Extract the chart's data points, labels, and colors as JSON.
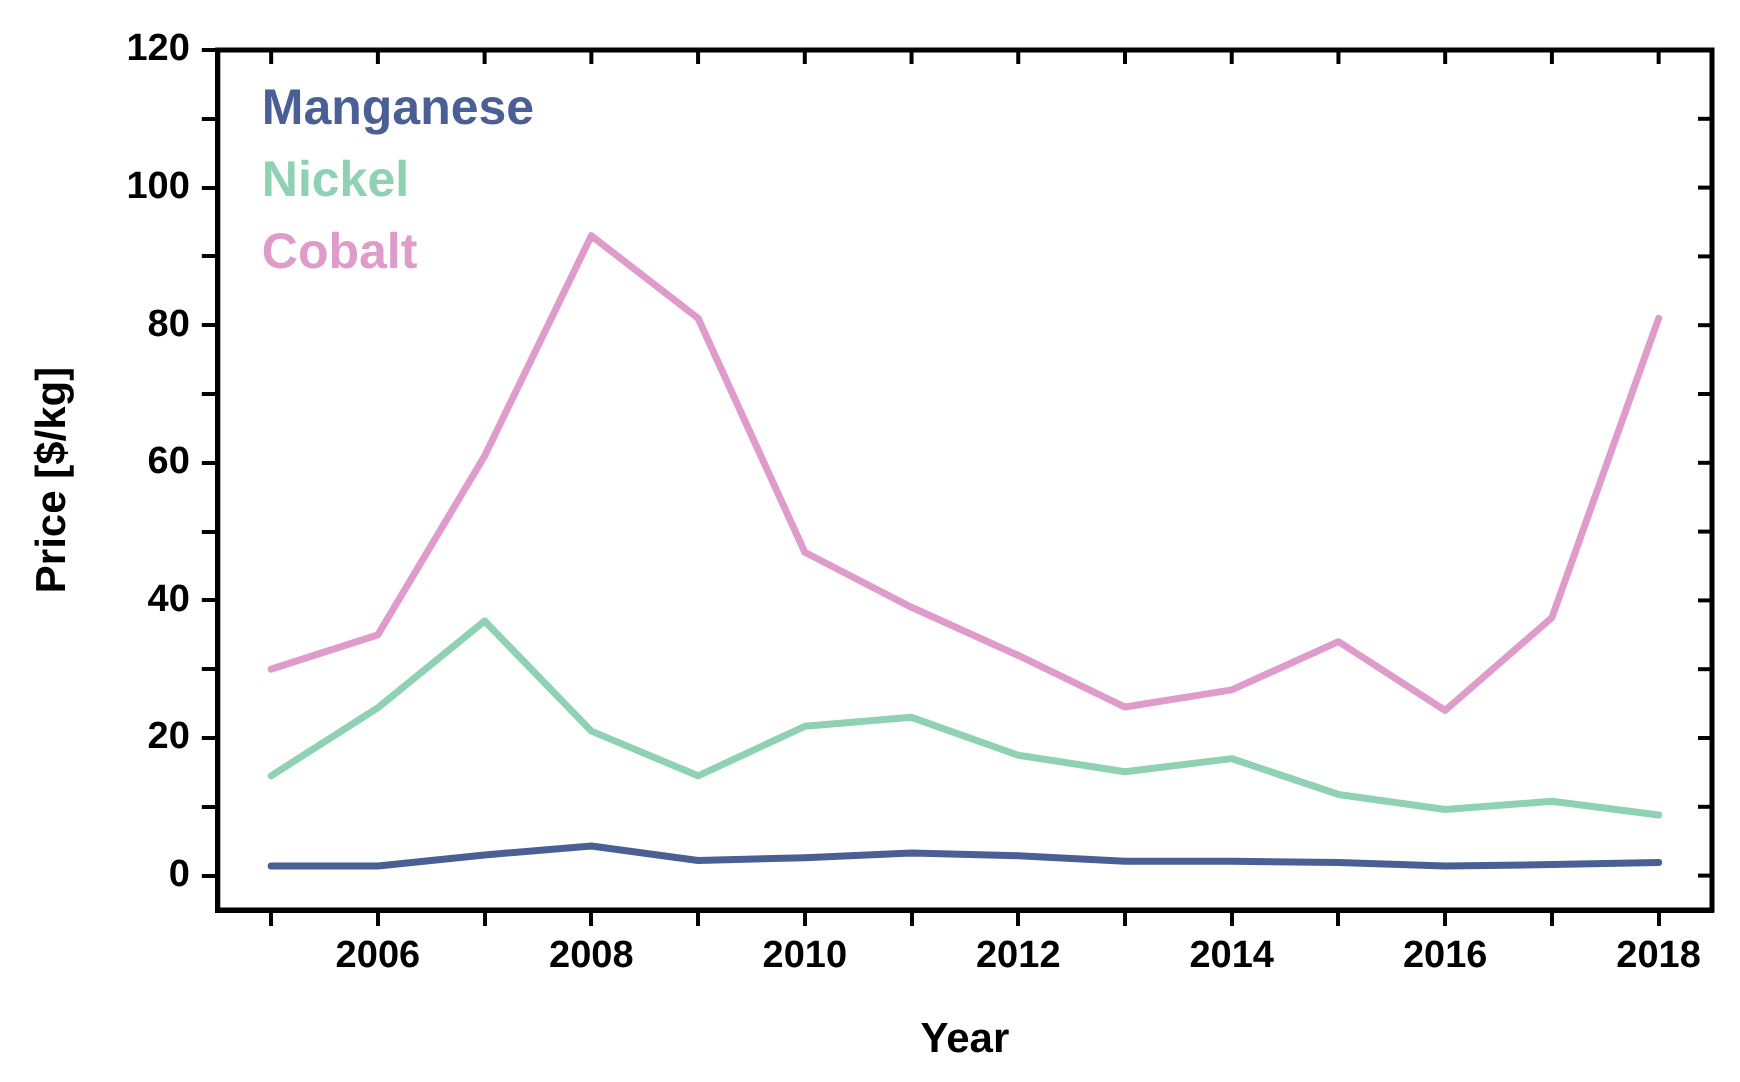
{
  "chart_data": {
    "type": "line",
    "xlabel": "Year",
    "ylabel": "Price [$/kg]",
    "x": [
      2005,
      2006,
      2007,
      2008,
      2009,
      2010,
      2011,
      2012,
      2013,
      2014,
      2015,
      2016,
      2017,
      2018
    ],
    "series": [
      {
        "name": "Manganese",
        "color": "#4a5f94",
        "values": [
          1.4,
          1.4,
          3,
          4.3,
          2.2,
          2.6,
          3.3,
          2.9,
          2.1,
          2.1,
          1.9,
          1.4,
          1.6,
          1.9
        ]
      },
      {
        "name": "Nickel",
        "color": "#8fd1b3",
        "values": [
          14.5,
          24.4,
          37,
          21,
          14.5,
          21.7,
          23,
          17.5,
          15.1,
          17,
          11.8,
          9.6,
          10.8,
          8.8
        ]
      },
      {
        "name": "Cobalt",
        "color": "#df9ccb",
        "values": [
          30,
          35,
          61,
          93,
          81,
          47,
          39,
          32,
          24.5,
          27,
          34,
          24,
          37.5,
          81
        ]
      }
    ],
    "xlim": [
      2004.5,
      2018.5
    ],
    "ylim": [
      -5,
      120
    ],
    "xticks": [
      {
        "value": 2005,
        "label": null
      },
      2006,
      {
        "value": 2007,
        "label": null
      },
      2008,
      {
        "value": 2009,
        "label": null
      },
      2010,
      {
        "value": 2011,
        "label": null
      },
      2012,
      {
        "value": 2013,
        "label": null
      },
      2014,
      {
        "value": 2015,
        "label": null
      },
      2016,
      {
        "value": 2017,
        "label": null
      },
      2018
    ],
    "yticks": [
      0,
      {
        "value": 10,
        "label": null
      },
      20,
      {
        "value": 30,
        "label": null
      },
      40,
      {
        "value": 50,
        "label": null
      },
      60,
      {
        "value": 70,
        "label": null
      },
      80,
      {
        "value": 90,
        "label": null
      },
      100,
      {
        "value": 110,
        "label": null
      },
      120
    ],
    "grid": false,
    "legend": "top left",
    "marker": "none",
    "line_style": "solid"
  }
}
